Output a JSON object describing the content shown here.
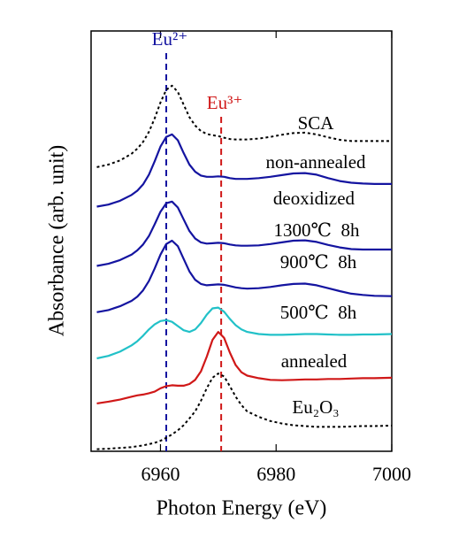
{
  "chart_data": {
    "type": "line",
    "x_label": "Photon Energy (eV)",
    "y_label": "Absorbance (arb. unit)",
    "xlim": [
      6948,
      7000
    ],
    "xticks": [
      6960,
      6980,
      7000
    ],
    "ylim": [
      0,
      10
    ],
    "x": [
      6949,
      6951,
      6953,
      6955,
      6956,
      6957,
      6958,
      6959,
      6960,
      6961,
      6962,
      6963,
      6964,
      6965,
      6966,
      6967,
      6968,
      6969,
      6970,
      6971,
      6972,
      6973,
      6974,
      6975,
      6977,
      6979,
      6981,
      6983,
      6985,
      6987,
      6989,
      6991,
      6993,
      6995,
      6997,
      7000
    ],
    "series": [
      {
        "name": "SCA",
        "color": "#000000",
        "style": "dotted",
        "values": [
          6.76,
          6.82,
          6.92,
          7.08,
          7.2,
          7.36,
          7.6,
          7.92,
          8.3,
          8.6,
          8.7,
          8.55,
          8.25,
          7.95,
          7.75,
          7.62,
          7.55,
          7.52,
          7.5,
          7.46,
          7.43,
          7.42,
          7.42,
          7.42,
          7.44,
          7.48,
          7.53,
          7.57,
          7.58,
          7.54,
          7.47,
          7.41,
          7.38,
          7.38,
          7.38,
          7.38
        ]
      },
      {
        "name": "non-annealed",
        "color": "#1414a0",
        "style": "solid",
        "values": [
          5.82,
          5.87,
          5.96,
          6.1,
          6.2,
          6.35,
          6.58,
          6.9,
          7.25,
          7.48,
          7.54,
          7.4,
          7.1,
          6.82,
          6.65,
          6.56,
          6.53,
          6.53,
          6.54,
          6.53,
          6.5,
          6.48,
          6.48,
          6.48,
          6.5,
          6.53,
          6.57,
          6.61,
          6.62,
          6.58,
          6.5,
          6.43,
          6.39,
          6.37,
          6.36,
          6.36
        ]
      },
      {
        "name": "1300℃  8h",
        "color": "#1414a0",
        "style": "solid",
        "values": [
          4.41,
          4.46,
          4.55,
          4.68,
          4.78,
          4.92,
          5.12,
          5.4,
          5.7,
          5.9,
          5.94,
          5.8,
          5.52,
          5.24,
          5.06,
          4.97,
          4.94,
          4.95,
          4.96,
          4.95,
          4.92,
          4.9,
          4.89,
          4.89,
          4.9,
          4.93,
          4.97,
          5.01,
          5.02,
          4.98,
          4.91,
          4.85,
          4.81,
          4.8,
          4.8,
          4.8
        ]
      },
      {
        "name": "900℃  8h",
        "color": "#1414a0",
        "style": "solid",
        "values": [
          3.31,
          3.36,
          3.45,
          3.58,
          3.68,
          3.83,
          4.05,
          4.35,
          4.68,
          4.93,
          5.01,
          4.88,
          4.58,
          4.28,
          4.08,
          3.98,
          3.95,
          3.96,
          3.97,
          3.96,
          3.93,
          3.9,
          3.88,
          3.87,
          3.88,
          3.91,
          3.95,
          3.98,
          3.99,
          3.95,
          3.88,
          3.81,
          3.75,
          3.72,
          3.7,
          3.69
        ]
      },
      {
        "name": "500℃  8h",
        "color": "#22c1c8",
        "style": "solid",
        "values": [
          2.21,
          2.27,
          2.37,
          2.52,
          2.62,
          2.75,
          2.9,
          3.02,
          3.1,
          3.12,
          3.08,
          2.98,
          2.88,
          2.84,
          2.9,
          3.05,
          3.25,
          3.4,
          3.42,
          3.32,
          3.15,
          3.0,
          2.9,
          2.84,
          2.79,
          2.77,
          2.77,
          2.78,
          2.79,
          2.79,
          2.78,
          2.77,
          2.77,
          2.78,
          2.78,
          2.79
        ]
      },
      {
        "name": "annealed",
        "color": "#d01818",
        "style": "solid",
        "values": [
          1.14,
          1.18,
          1.23,
          1.3,
          1.33,
          1.35,
          1.38,
          1.42,
          1.5,
          1.55,
          1.57,
          1.56,
          1.56,
          1.6,
          1.7,
          1.9,
          2.25,
          2.65,
          2.84,
          2.7,
          2.35,
          2.05,
          1.88,
          1.8,
          1.74,
          1.7,
          1.69,
          1.7,
          1.71,
          1.71,
          1.72,
          1.72,
          1.73,
          1.74,
          1.74,
          1.75
        ]
      },
      {
        "name": "Eu₂O₃",
        "color": "#000000",
        "style": "dotted",
        "values": [
          0.05,
          0.06,
          0.08,
          0.1,
          0.12,
          0.14,
          0.17,
          0.2,
          0.25,
          0.32,
          0.4,
          0.5,
          0.62,
          0.78,
          0.95,
          1.2,
          1.5,
          1.75,
          1.85,
          1.78,
          1.55,
          1.3,
          1.1,
          0.95,
          0.82,
          0.72,
          0.66,
          0.62,
          0.6,
          0.58,
          0.58,
          0.58,
          0.59,
          0.6,
          0.6,
          0.61
        ]
      }
    ],
    "vlines": [
      {
        "x": 6961,
        "label": "Eu²⁺",
        "color": "#1414a0"
      },
      {
        "x": 6970.5,
        "label": "Eu³⁺",
        "color": "#d01818"
      }
    ],
    "annotations": [
      "deoxidized"
    ]
  }
}
